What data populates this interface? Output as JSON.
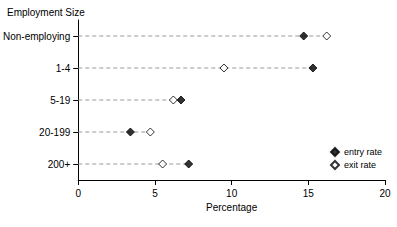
{
  "chart_data": {
    "type": "scatter",
    "orientation": "horizontal",
    "y_label": "Employment Size",
    "x_label": "Percentage",
    "categories": [
      "Non-employing",
      "1-4",
      "5-19",
      "20-199",
      "200+"
    ],
    "series": [
      {
        "name": "entry rate",
        "color": "#000000",
        "marker": "diamond",
        "values": [
          14.7,
          15.3,
          6.7,
          3.4,
          7.2
        ]
      },
      {
        "name": "exit rate",
        "color": "#000000",
        "marker": "open_diamond",
        "values": [
          16.2,
          9.5,
          6.2,
          4.7,
          5.5
        ]
      }
    ],
    "xlim": [
      0,
      20
    ],
    "xticks": [
      0,
      5,
      10,
      15,
      20
    ],
    "grid": false,
    "legend": "lower right"
  }
}
